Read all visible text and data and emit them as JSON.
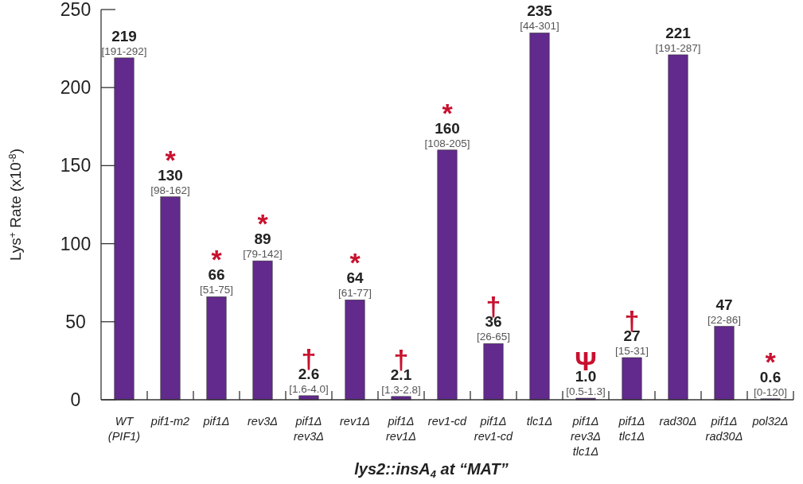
{
  "chart_data": {
    "type": "bar",
    "xlabel": "lys2::insA$_{4}$ at “MAT”",
    "ylabel": "Lys$^{+}$ Rate (x10$^{-8}$)",
    "categories": [
      "WT\n(PIF1)",
      "pif1-m2",
      "pif1Δ",
      "rev3Δ",
      "pif1Δ\nrev3Δ",
      "rev1Δ",
      "pif1Δ\nrev1Δ",
      "rev1-cd",
      "pif1Δ\nrev1-cd",
      "tlc1Δ",
      "pif1Δ\nrev3Δ\ntlc1Δ",
      "pif1Δ\ntlc1Δ",
      "rad30Δ",
      "pif1Δ\nrad30Δ",
      "pol32Δ"
    ],
    "values": [
      219,
      130,
      66,
      89,
      2.6,
      64,
      2.1,
      160,
      36,
      235,
      1.0,
      27,
      221,
      47,
      0.6
    ],
    "value_labels": [
      "219",
      "130",
      "66",
      "89",
      "2.6",
      "64",
      "2.1",
      "160",
      "36",
      "235",
      "1.0",
      "27",
      "221",
      "47",
      "0.6"
    ],
    "color": "#622a8c",
    "ylim": [
      0,
      250
    ],
    "yticks": [
      0,
      50,
      100,
      150,
      200,
      250
    ],
    "grid": false,
    "annotations": [
      {
        "text": "[191-292]",
        "x": "WT\n(PIF1)",
        "y": 219
      },
      {
        "text": "[98-162]",
        "x": "pif1-m2",
        "y": 130
      },
      {
        "text": "*",
        "x": "pif1-m2",
        "y": 130
      },
      {
        "text": "[51-75]",
        "x": "pif1Δ",
        "y": 66
      },
      {
        "text": "*",
        "x": "pif1Δ",
        "y": 66
      },
      {
        "text": "[79-142]",
        "x": "rev3Δ",
        "y": 89
      },
      {
        "text": "*",
        "x": "rev3Δ",
        "y": 89
      },
      {
        "text": "[1.6-4.0]",
        "x": "pif1Δ\nrev3Δ",
        "y": 2.6
      },
      {
        "text": "†",
        "x": "pif1Δ\nrev3Δ",
        "y": 2.6
      },
      {
        "text": "[61-77]",
        "x": "rev1Δ",
        "y": 64
      },
      {
        "text": "*",
        "x": "rev1Δ",
        "y": 64
      },
      {
        "text": "[1.3-2.8]",
        "x": "pif1Δ\nrev1Δ",
        "y": 2.1
      },
      {
        "text": "†",
        "x": "pif1Δ\nrev1Δ",
        "y": 2.1
      },
      {
        "text": "[108-205]",
        "x": "rev1-cd",
        "y": 160
      },
      {
        "text": "*",
        "x": "rev1-cd",
        "y": 160
      },
      {
        "text": "[26-65]",
        "x": "pif1Δ\nrev1-cd",
        "y": 36
      },
      {
        "text": "†",
        "x": "pif1Δ\nrev1-cd",
        "y": 36
      },
      {
        "text": "[44-301]",
        "x": "tlc1Δ",
        "y": 235
      },
      {
        "text": "[0.5-1.3]",
        "x": "pif1Δ\nrev3Δ\ntlc1Δ",
        "y": 1.0
      },
      {
        "text": "Ψ",
        "x": "pif1Δ\nrev3Δ\ntlc1Δ",
        "y": 1.0
      },
      {
        "text": "[15-31]",
        "x": "pif1Δ\ntlc1Δ",
        "y": 27
      },
      {
        "text": "†",
        "x": "pif1Δ\ntlc1Δ",
        "y": 27
      },
      {
        "text": "[191-287]",
        "x": "rad30Δ",
        "y": 221
      },
      {
        "text": "[22-86]",
        "x": "pif1Δ\nrad30Δ",
        "y": 47
      },
      {
        "text": "[0-120]",
        "x": "pol32Δ",
        "y": 0.6
      },
      {
        "text": "*",
        "x": "pol32Δ",
        "y": 0.6
      }
    ]
  }
}
